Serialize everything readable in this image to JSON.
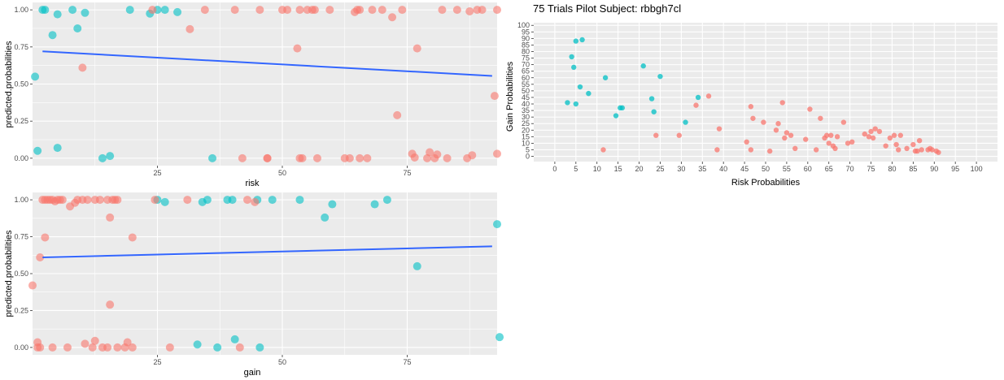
{
  "colors": {
    "risk_red": "#F8766D",
    "safe_teal": "#00BFC4",
    "trend_blue": "#3366FF",
    "panel_bg": "#EBEBEB",
    "grid": "#FFFFFF"
  },
  "chart_data": [
    {
      "id": "risk_plot",
      "type": "scatter",
      "xlabel": "risk",
      "ylabel": "predicted.probabilities",
      "xlim": [
        0,
        93
      ],
      "ylim": [
        -0.05,
        1.05
      ],
      "x_ticks": [
        25,
        50,
        75
      ],
      "x_tick_labels": [
        "25",
        "50",
        "75"
      ],
      "y_ticks": [
        0,
        0.25,
        0.5,
        0.75,
        1
      ],
      "y_tick_labels": [
        "0.00",
        "0.25",
        "0.50",
        "0.75",
        "1.00"
      ],
      "grid": true,
      "trend": {
        "x": [
          2,
          92
        ],
        "y": [
          0.72,
          0.555
        ]
      },
      "series": [
        {
          "color_key": "safe_teal",
          "points": [
            [
              0.5,
              0.55
            ],
            [
              1,
              0.05
            ],
            [
              2,
              1.0
            ],
            [
              2.5,
              1.0
            ],
            [
              4,
              0.83
            ],
            [
              5,
              0.07
            ],
            [
              5,
              0.97
            ],
            [
              8,
              1.0
            ],
            [
              9,
              0.875
            ],
            [
              10.5,
              0.98
            ],
            [
              14,
              0.0
            ],
            [
              15.5,
              0.015
            ],
            [
              19.5,
              1.0
            ],
            [
              23.5,
              0.975
            ],
            [
              25,
              1.0
            ],
            [
              26.5,
              1.0
            ],
            [
              29,
              0.985
            ],
            [
              36,
              0.0
            ]
          ]
        },
        {
          "color_key": "risk_red",
          "points": [
            [
              10,
              0.61
            ],
            [
              24,
              1.0
            ],
            [
              31.5,
              0.87
            ],
            [
              34.5,
              1.0
            ],
            [
              40.5,
              1.0
            ],
            [
              42,
              0.0
            ],
            [
              45.5,
              1.0
            ],
            [
              47,
              0.0
            ],
            [
              47,
              0.0
            ],
            [
              50,
              1.0
            ],
            [
              51,
              1.0
            ],
            [
              53,
              0.74
            ],
            [
              53.5,
              0.0
            ],
            [
              53.5,
              1.0
            ],
            [
              54,
              0.0
            ],
            [
              55,
              1.0
            ],
            [
              56,
              1.0
            ],
            [
              56.5,
              1.0
            ],
            [
              57,
              0.0
            ],
            [
              59.5,
              1.0
            ],
            [
              62.5,
              0.0
            ],
            [
              63.5,
              0.0
            ],
            [
              64.5,
              0.985
            ],
            [
              65,
              1.0
            ],
            [
              65.5,
              1.0
            ],
            [
              65.5,
              0.0
            ],
            [
              67,
              0.0
            ],
            [
              68,
              1.0
            ],
            [
              70,
              1.0
            ],
            [
              72,
              0.95
            ],
            [
              73,
              0.29
            ],
            [
              74,
              1.0
            ],
            [
              76,
              0.03
            ],
            [
              76.5,
              0.005
            ],
            [
              77,
              0.74
            ],
            [
              79,
              0.0
            ],
            [
              79.5,
              0.04
            ],
            [
              80.5,
              0.0
            ],
            [
              81,
              0.025
            ],
            [
              82,
              1.0
            ],
            [
              83,
              0.0
            ],
            [
              85,
              1.0
            ],
            [
              87,
              0.0
            ],
            [
              87.5,
              0.99
            ],
            [
              88,
              0.02
            ],
            [
              89,
              1.0
            ],
            [
              90,
              1.0
            ],
            [
              92.5,
              0.42
            ],
            [
              93,
              0.03
            ],
            [
              93,
              1.0
            ]
          ]
        }
      ]
    },
    {
      "id": "gain_plot",
      "type": "scatter",
      "xlabel": "gain",
      "ylabel": "predicted.probabilities",
      "xlim": [
        0,
        93
      ],
      "ylim": [
        -0.05,
        1.05
      ],
      "x_ticks": [
        25,
        50,
        75
      ],
      "x_tick_labels": [
        "25",
        "50",
        "75"
      ],
      "y_ticks": [
        0,
        0.25,
        0.5,
        0.75,
        1
      ],
      "y_tick_labels": [
        "0.00",
        "0.25",
        "0.50",
        "0.75",
        "1.00"
      ],
      "grid": true,
      "trend": {
        "x": [
          2,
          92
        ],
        "y": [
          0.61,
          0.685
        ]
      },
      "series": [
        {
          "color_key": "safe_teal",
          "points": [
            [
              25,
              1.0
            ],
            [
              26.5,
              0.985
            ],
            [
              34,
              0.985
            ],
            [
              35,
              1.0
            ],
            [
              33,
              0.02
            ],
            [
              39,
              1.0
            ],
            [
              40,
              1.0
            ],
            [
              40.5,
              0.055
            ],
            [
              37,
              0.0
            ],
            [
              45,
              1.0
            ],
            [
              45.5,
              0.0
            ],
            [
              48,
              1.0
            ],
            [
              53.5,
              1.0
            ],
            [
              58.5,
              0.88
            ],
            [
              60,
              0.97
            ],
            [
              68.5,
              0.97
            ],
            [
              71,
              1.0
            ],
            [
              77,
              0.55
            ],
            [
              93,
              0.835
            ],
            [
              93.5,
              0.07
            ]
          ]
        },
        {
          "color_key": "risk_red",
          "points": [
            [
              0,
              0.42
            ],
            [
              1,
              0.0
            ],
            [
              1,
              0.035
            ],
            [
              1.5,
              0.61
            ],
            [
              1.5,
              0.0
            ],
            [
              2,
              1.0
            ],
            [
              2.5,
              1.0
            ],
            [
              3,
              1.0
            ],
            [
              2.5,
              0.745
            ],
            [
              3.5,
              1.0
            ],
            [
              4,
              1.0
            ],
            [
              4,
              0.0
            ],
            [
              4.5,
              0.99
            ],
            [
              5,
              1.0
            ],
            [
              5.5,
              1.0
            ],
            [
              6,
              1.0
            ],
            [
              7,
              0.0
            ],
            [
              7.5,
              0.955
            ],
            [
              8.5,
              0.98
            ],
            [
              9,
              1.0
            ],
            [
              10,
              1.0
            ],
            [
              10.5,
              0.025
            ],
            [
              11,
              1.0
            ],
            [
              12,
              0.0
            ],
            [
              12.5,
              1.0
            ],
            [
              12.5,
              0.045
            ],
            [
              13.5,
              1.0
            ],
            [
              14,
              0.0
            ],
            [
              15,
              0.0
            ],
            [
              15,
              1.0
            ],
            [
              15.5,
              0.88
            ],
            [
              15.5,
              0.29
            ],
            [
              16,
              1.0
            ],
            [
              16.5,
              1.0
            ],
            [
              17,
              0.0
            ],
            [
              17,
              1.0
            ],
            [
              18.5,
              0.0
            ],
            [
              19,
              0.035
            ],
            [
              20,
              0.745
            ],
            [
              20,
              0.0
            ],
            [
              24.5,
              1.0
            ],
            [
              27.5,
              0.0
            ],
            [
              31,
              1.0
            ],
            [
              41.5,
              0.0
            ],
            [
              43,
              1.0
            ],
            [
              44.5,
              0.985
            ]
          ]
        }
      ]
    },
    {
      "id": "trials_plot",
      "type": "scatter",
      "title": "75 Trials Pilot Subject:  rbbgh7cl",
      "xlabel": "Risk Probabilities",
      "ylabel": "Gain Probabilities",
      "xlim": [
        -5,
        105
      ],
      "ylim": [
        -4,
        102
      ],
      "x_ticks": [
        0,
        5,
        10,
        15,
        20,
        25,
        30,
        35,
        40,
        45,
        50,
        55,
        60,
        65,
        70,
        75,
        80,
        85,
        90,
        95,
        100
      ],
      "x_tick_labels": [
        "0",
        "5",
        "10",
        "15",
        "20",
        "25",
        "30",
        "35",
        "40",
        "45",
        "50",
        "55",
        "60",
        "65",
        "70",
        "75",
        "80",
        "85",
        "90",
        "95",
        "100"
      ],
      "y_ticks": [
        0,
        5,
        10,
        15,
        20,
        25,
        30,
        35,
        40,
        45,
        50,
        55,
        60,
        65,
        70,
        75,
        80,
        85,
        90,
        95,
        100
      ],
      "y_tick_labels": [
        "0",
        "5",
        "10",
        "15",
        "20",
        "25",
        "30",
        "35",
        "40",
        "45",
        "50",
        "55",
        "60",
        "65",
        "70",
        "75",
        "80",
        "85",
        "90",
        "95",
        "100"
      ],
      "grid": true,
      "series": [
        {
          "color_key": "safe_teal",
          "points": [
            [
              3,
              41
            ],
            [
              4,
              76
            ],
            [
              4.5,
              68
            ],
            [
              5,
              88
            ],
            [
              5,
              40
            ],
            [
              6,
              53
            ],
            [
              6.5,
              89
            ],
            [
              8,
              48
            ],
            [
              12,
              60
            ],
            [
              14.5,
              31
            ],
            [
              15.5,
              37
            ],
            [
              16,
              37
            ],
            [
              21,
              69
            ],
            [
              23,
              44
            ],
            [
              23.5,
              34
            ],
            [
              25,
              61
            ],
            [
              31,
              26
            ],
            [
              34,
              45
            ]
          ]
        },
        {
          "color_key": "risk_red",
          "points": [
            [
              11.5,
              5
            ],
            [
              24,
              16
            ],
            [
              29.5,
              16
            ],
            [
              33.5,
              39
            ],
            [
              36.5,
              46
            ],
            [
              38.5,
              5
            ],
            [
              39,
              21
            ],
            [
              45.5,
              11
            ],
            [
              46.5,
              5
            ],
            [
              46.5,
              38
            ],
            [
              47,
              29
            ],
            [
              49.5,
              26
            ],
            [
              51,
              4
            ],
            [
              52.5,
              20
            ],
            [
              53,
              25
            ],
            [
              54,
              41
            ],
            [
              54.5,
              14
            ],
            [
              55,
              18
            ],
            [
              56,
              16
            ],
            [
              57,
              6
            ],
            [
              59.5,
              13
            ],
            [
              60.5,
              36
            ],
            [
              62,
              5
            ],
            [
              63,
              29
            ],
            [
              64,
              14
            ],
            [
              64.5,
              16
            ],
            [
              65,
              10
            ],
            [
              65.5,
              16
            ],
            [
              66,
              8
            ],
            [
              66.5,
              6
            ],
            [
              67,
              15
            ],
            [
              68.5,
              26
            ],
            [
              69.5,
              10
            ],
            [
              70.5,
              11
            ],
            [
              73.5,
              17
            ],
            [
              74.5,
              15
            ],
            [
              75,
              19
            ],
            [
              75.5,
              14
            ],
            [
              76,
              21
            ],
            [
              77,
              19
            ],
            [
              78.5,
              8
            ],
            [
              79.5,
              14
            ],
            [
              80.5,
              16
            ],
            [
              81,
              9
            ],
            [
              81.5,
              5
            ],
            [
              82,
              16
            ],
            [
              83.5,
              6
            ],
            [
              85,
              9
            ],
            [
              85.5,
              4
            ],
            [
              86,
              4
            ],
            [
              86.5,
              12
            ],
            [
              87,
              5
            ],
            [
              88.5,
              5
            ],
            [
              89,
              6
            ],
            [
              89.5,
              5
            ],
            [
              90.5,
              4
            ],
            [
              91,
              3
            ]
          ]
        }
      ]
    }
  ]
}
